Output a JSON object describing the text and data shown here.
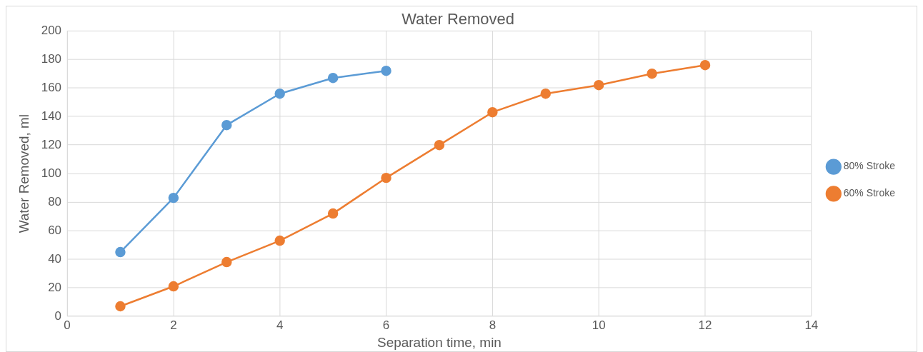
{
  "chart_data": {
    "type": "line",
    "title": "Water Removed",
    "xlabel": "Separation time, min",
    "ylabel": "Water Removed, ml",
    "xlim": [
      0,
      14
    ],
    "xticks": [
      0,
      2,
      4,
      6,
      8,
      10,
      12,
      14
    ],
    "ylim": [
      0,
      200
    ],
    "yticks": [
      0,
      20,
      40,
      60,
      80,
      100,
      120,
      140,
      160,
      180,
      200
    ],
    "grid": true,
    "legend": "right",
    "marker": "circle",
    "line_style": "solid",
    "series": [
      {
        "name": "80% Stroke",
        "color": "#5b9bd5",
        "x": [
          1,
          2,
          3,
          4,
          5,
          6
        ],
        "values": [
          45,
          83,
          134,
          156,
          167,
          172
        ]
      },
      {
        "name": "60% Stroke",
        "color": "#ed7d31",
        "x": [
          1,
          2,
          3,
          4,
          5,
          6,
          7,
          8,
          9,
          10,
          11,
          12
        ],
        "values": [
          7,
          21,
          38,
          53,
          72,
          97,
          120,
          143,
          156,
          162,
          170,
          176
        ]
      }
    ]
  }
}
